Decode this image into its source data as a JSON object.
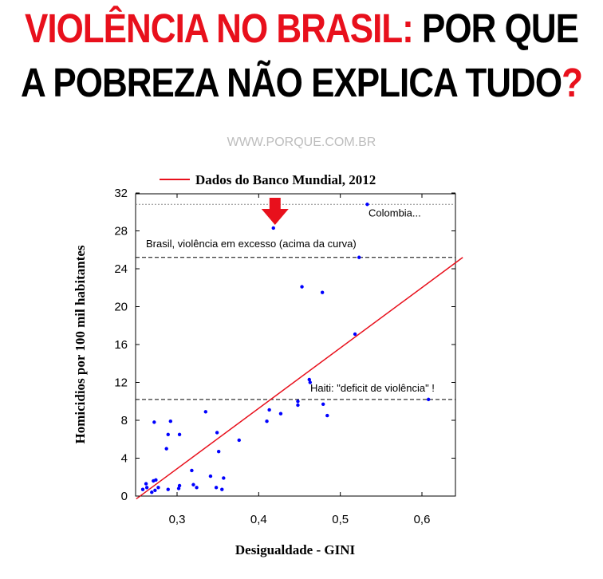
{
  "headline": {
    "line1_red": "VIOLÊNCIA NO BRASIL:",
    "line1_black": " POR QUE",
    "line2_black": "A POBREZA NÃO EXPLICA TUDO",
    "line2_red": "?"
  },
  "source_url": "WWW.PORQUE.COM.BR",
  "colors": {
    "headline_red": "#e8101c",
    "points": "#0000ff",
    "trend": "#e8101c",
    "arrow": "#e8101c"
  },
  "chart_data": {
    "type": "scatter",
    "title": "",
    "xlabel": "Desigualdade - GINI",
    "ylabel": "Homicidios por 100 mil habitantes",
    "xlim": [
      0.25,
      0.65
    ],
    "ylim": [
      0,
      32
    ],
    "xticks": [
      "0,3",
      "0,4",
      "0,5",
      "0,6"
    ],
    "yticks": [
      "0",
      "4",
      "8",
      "12",
      "16",
      "20",
      "24",
      "28",
      "32"
    ],
    "grid": false,
    "legend": {
      "position": "top",
      "entries": [
        {
          "label": "Dados do Banco Mundial, 2012",
          "color": "#e8101c"
        }
      ]
    },
    "trend_line": {
      "x": [
        0.25,
        0.65
      ],
      "y": [
        -0.3,
        25.2
      ]
    },
    "reference_lines": [
      {
        "y": 30.8,
        "style": "dotted",
        "label": "Colombia..."
      },
      {
        "y": 25.2,
        "style": "dashed",
        "label": "Brasil, violência em excesso (acima da curva)"
      },
      {
        "y": 10.2,
        "style": "dashed",
        "label": "Haiti: \"deficit de violência\" !"
      }
    ],
    "highlight_arrow_x": 0.42,
    "points": [
      [
        0.418,
        28.3
      ],
      [
        0.533,
        30.8
      ],
      [
        0.523,
        25.2
      ],
      [
        0.453,
        22.1
      ],
      [
        0.478,
        21.5
      ],
      [
        0.518,
        17.1
      ],
      [
        0.462,
        12.3
      ],
      [
        0.463,
        12.0
      ],
      [
        0.608,
        10.2
      ],
      [
        0.448,
        10.0
      ],
      [
        0.448,
        9.6
      ],
      [
        0.479,
        9.7
      ],
      [
        0.413,
        9.1
      ],
      [
        0.484,
        8.5
      ],
      [
        0.427,
        8.7
      ],
      [
        0.41,
        7.9
      ],
      [
        0.335,
        8.9
      ],
      [
        0.272,
        7.8
      ],
      [
        0.292,
        7.9
      ],
      [
        0.289,
        6.5
      ],
      [
        0.303,
        6.5
      ],
      [
        0.349,
        6.7
      ],
      [
        0.376,
        5.9
      ],
      [
        0.287,
        5.0
      ],
      [
        0.351,
        4.7
      ],
      [
        0.318,
        2.7
      ],
      [
        0.341,
        2.1
      ],
      [
        0.357,
        1.9
      ],
      [
        0.262,
        1.3
      ],
      [
        0.271,
        1.6
      ],
      [
        0.274,
        1.7
      ],
      [
        0.263,
        0.9
      ],
      [
        0.258,
        0.7
      ],
      [
        0.277,
        0.9
      ],
      [
        0.289,
        0.7
      ],
      [
        0.303,
        1.1
      ],
      [
        0.302,
        0.8
      ],
      [
        0.32,
        1.2
      ],
      [
        0.324,
        0.9
      ],
      [
        0.348,
        0.9
      ],
      [
        0.355,
        0.7
      ],
      [
        0.269,
        0.4
      ],
      [
        0.273,
        0.6
      ]
    ]
  }
}
